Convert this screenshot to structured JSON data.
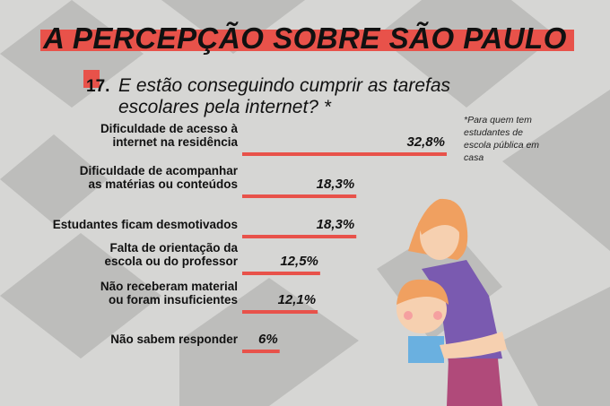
{
  "title": "A PERCEPÇÃO SOBRE SÃO PAULO",
  "question_number": "17.",
  "question": "E estão conseguindo cumprir as tarefas\nescolares pela internet? *",
  "footnote": "*Para quem tem\nestudantes de\nescola pública em\ncasa",
  "chart_data": {
    "type": "bar",
    "orientation": "horizontal",
    "color": "#e8524a",
    "categories": [
      "Dificuldade de acesso à\ninternet na residência",
      "Dificuldade de acompanhar\nas matérias ou conteúdos",
      "Estudantes ficam desmotivados",
      "Falta de orientação da\nescola ou do professor",
      "Não receberam material\nou foram insuficientes",
      "Não sabem responder"
    ],
    "values": [
      32.8,
      18.3,
      18.3,
      12.5,
      12.1,
      6
    ],
    "value_labels": [
      "32,8%",
      "18,3%",
      "18,3%",
      "12,5%",
      "12,1%",
      "6%"
    ]
  }
}
